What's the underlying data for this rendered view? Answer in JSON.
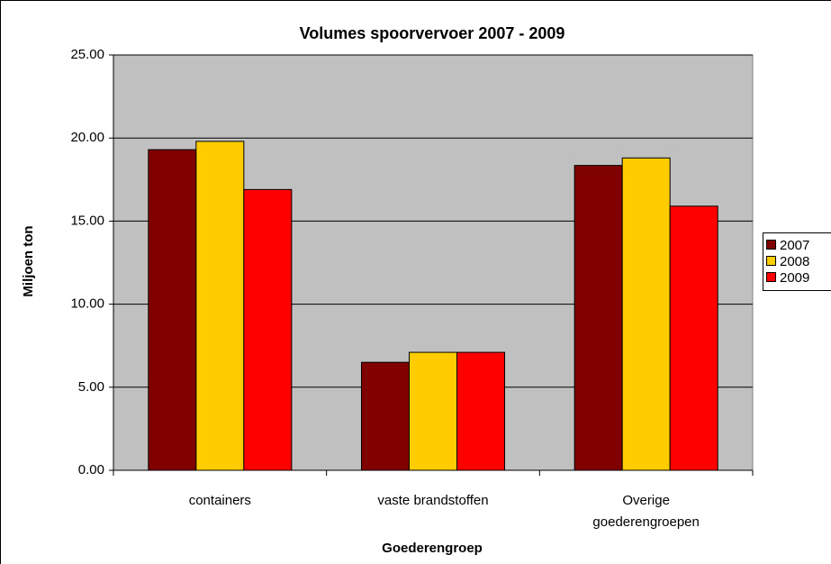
{
  "chart_data": {
    "type": "bar",
    "title": "Volumes spoorvervoer 2007 - 2009",
    "x_label": "Goederengroep",
    "y_label": "Miljoen ton",
    "categories": [
      "containers",
      "vaste brandstoffen",
      "Overige goederengroepen"
    ],
    "series": [
      {
        "name": "2007",
        "color": "#800000",
        "values": [
          19.3,
          6.5,
          18.35
        ]
      },
      {
        "name": "2008",
        "color": "#FFCC00",
        "values": [
          19.8,
          7.1,
          18.8
        ]
      },
      {
        "name": "2009",
        "color": "#FF0000",
        "values": [
          16.9,
          7.1,
          15.9
        ]
      }
    ],
    "ylim": [
      0,
      25
    ],
    "yticks": [
      {
        "value": 0,
        "label": "0.00"
      },
      {
        "value": 5,
        "label": "5.00"
      },
      {
        "value": 10,
        "label": "10.00"
      },
      {
        "value": 15,
        "label": "15.00"
      },
      {
        "value": 20,
        "label": "20.00"
      },
      {
        "value": 25,
        "label": "25.00"
      }
    ],
    "grid": true,
    "legend": "right"
  }
}
